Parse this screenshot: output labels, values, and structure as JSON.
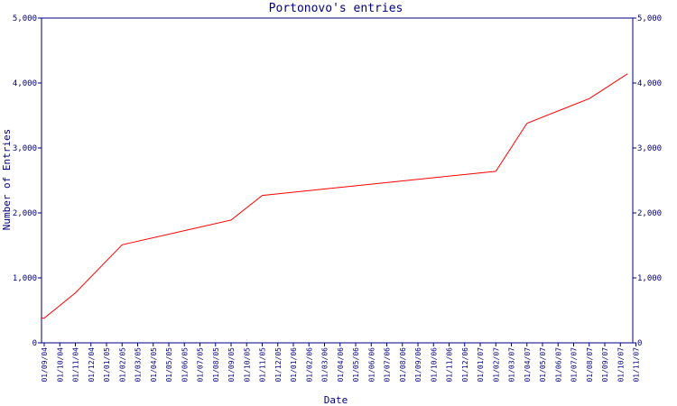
{
  "chart_data": {
    "type": "line",
    "title": "Portonovo's entries",
    "xlabel": "Date",
    "ylabel": "Number of Entries",
    "ylim": [
      0,
      5000
    ],
    "y_ticks": [
      0,
      1000,
      2000,
      3000,
      4000,
      5000
    ],
    "y_tick_labels": [
      "0",
      "1,000",
      "2,000",
      "3,000",
      "4,000",
      "5,000"
    ],
    "x_tick_labels": [
      "01/09/04",
      "01/10/04",
      "01/11/04",
      "01/12/04",
      "01/01/05",
      "01/02/05",
      "01/03/05",
      "01/04/05",
      "01/05/05",
      "01/06/05",
      "01/07/05",
      "01/08/05",
      "01/09/05",
      "01/10/05",
      "01/11/05",
      "01/12/05",
      "01/01/06",
      "01/02/06",
      "01/03/06",
      "01/04/06",
      "01/05/06",
      "01/06/06",
      "01/07/06",
      "01/08/06",
      "01/09/06",
      "01/10/06",
      "01/11/06",
      "01/12/06",
      "01/01/07",
      "01/02/07",
      "01/03/07",
      "01/04/07",
      "01/05/07",
      "01/06/07",
      "01/07/07",
      "01/08/07",
      "01/09/07",
      "01/10/07",
      "01/11/07"
    ],
    "grid": false,
    "series": [
      {
        "color": "#ff0000",
        "points": [
          {
            "x": "2004-08-25",
            "y": 380
          },
          {
            "x": "2004-09-01",
            "y": 380
          },
          {
            "x": "2004-11-01",
            "y": 770
          },
          {
            "x": "2005-02-01",
            "y": 1510
          },
          {
            "x": "2005-09-01",
            "y": 1890
          },
          {
            "x": "2005-11-01",
            "y": 2270
          },
          {
            "x": "2007-02-01",
            "y": 2640
          },
          {
            "x": "2007-04-01",
            "y": 3380
          },
          {
            "x": "2007-08-01",
            "y": 3760
          },
          {
            "x": "2007-10-15",
            "y": 4140
          }
        ]
      }
    ]
  },
  "colors": {
    "axis": "#000080",
    "text": "#000080",
    "line": "#ff0000",
    "background": "#ffffff"
  }
}
